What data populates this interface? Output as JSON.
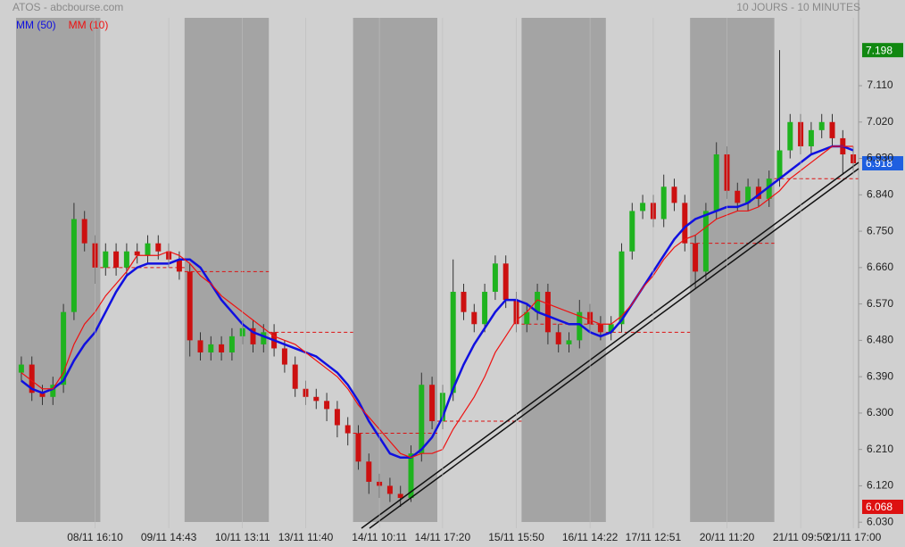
{
  "chart_data": {
    "type": "candlestick",
    "title": "ATOS - abcbourse.com",
    "subtitle": "10 JOURS - 10 MINUTES",
    "categories": [
      null,
      null,
      null,
      null,
      null,
      null,
      null,
      "08/11 16:10",
      null,
      null,
      null,
      null,
      null,
      null,
      "09/11 14:43",
      null,
      null,
      null,
      null,
      null,
      null,
      "10/11 13:11",
      null,
      null,
      null,
      null,
      null,
      "13/11 11:40",
      null,
      null,
      null,
      null,
      null,
      null,
      "14/11 10:11",
      null,
      null,
      null,
      null,
      null,
      "14/11 17:20",
      null,
      null,
      null,
      null,
      null,
      null,
      "15/11 15:50",
      null,
      null,
      null,
      null,
      null,
      null,
      "16/11 14:22",
      null,
      null,
      null,
      null,
      null,
      "17/11 12:51",
      null,
      null,
      null,
      null,
      null,
      null,
      "20/11 11:20",
      null,
      null,
      null,
      null,
      null,
      null,
      "21/11 09:50",
      null,
      null,
      null,
      null,
      "21/11 17:00"
    ],
    "open": [
      6.4,
      6.42,
      6.35,
      6.34,
      6.37,
      6.55,
      6.78,
      6.72,
      6.66,
      6.7,
      6.66,
      6.7,
      6.69,
      6.72,
      6.7,
      6.68,
      6.65,
      6.48,
      6.45,
      6.47,
      6.45,
      6.49,
      6.51,
      6.47,
      6.5,
      6.46,
      6.42,
      6.36,
      6.34,
      6.33,
      6.31,
      6.27,
      6.25,
      6.18,
      6.13,
      6.12,
      6.1,
      6.09,
      6.2,
      6.37,
      6.28,
      6.35,
      6.6,
      6.55,
      6.52,
      6.6,
      6.67,
      6.58,
      6.52,
      6.55,
      6.6,
      6.5,
      6.47,
      6.48,
      6.55,
      6.52,
      6.5,
      6.52,
      6.7,
      6.8,
      6.82,
      6.78,
      6.86,
      6.82,
      6.72,
      6.65,
      6.8,
      6.94,
      6.85,
      6.82,
      6.86,
      6.83,
      6.88,
      6.95,
      7.02,
      6.96,
      7.0,
      7.02,
      6.98,
      6.94
    ],
    "high": [
      6.44,
      6.44,
      6.37,
      6.39,
      6.57,
      6.82,
      6.8,
      6.74,
      6.72,
      6.72,
      6.72,
      6.72,
      6.74,
      6.74,
      6.72,
      6.7,
      6.67,
      6.5,
      6.49,
      6.49,
      6.51,
      6.53,
      6.53,
      6.52,
      6.52,
      6.48,
      6.44,
      6.38,
      6.36,
      6.35,
      6.33,
      6.29,
      6.27,
      6.2,
      6.15,
      6.14,
      6.12,
      6.22,
      6.4,
      6.39,
      6.37,
      6.68,
      6.62,
      6.57,
      6.62,
      6.69,
      6.69,
      6.6,
      6.57,
      6.62,
      6.62,
      6.52,
      6.5,
      6.58,
      6.57,
      6.54,
      6.54,
      6.72,
      6.82,
      6.84,
      6.84,
      6.89,
      6.88,
      6.84,
      6.74,
      6.82,
      6.97,
      6.96,
      6.87,
      6.88,
      6.88,
      6.9,
      7.198,
      7.04,
      7.04,
      7.02,
      7.04,
      7.04,
      7.0,
      6.96
    ],
    "low": [
      6.38,
      6.33,
      6.32,
      6.32,
      6.35,
      6.53,
      6.7,
      6.62,
      6.64,
      6.64,
      6.64,
      6.67,
      6.67,
      6.68,
      6.66,
      6.63,
      6.44,
      6.43,
      6.43,
      6.43,
      6.43,
      6.47,
      6.45,
      6.45,
      6.44,
      6.4,
      6.34,
      6.32,
      6.31,
      6.28,
      6.24,
      6.22,
      6.16,
      6.1,
      6.09,
      6.08,
      6.068,
      6.08,
      6.18,
      6.26,
      6.26,
      6.33,
      6.53,
      6.5,
      6.5,
      6.58,
      6.56,
      6.5,
      6.5,
      6.53,
      6.47,
      6.45,
      6.45,
      6.46,
      6.5,
      6.48,
      6.48,
      6.5,
      6.68,
      6.78,
      6.76,
      6.76,
      6.8,
      6.7,
      6.61,
      6.63,
      6.78,
      6.83,
      6.8,
      6.8,
      6.81,
      6.81,
      6.86,
      6.93,
      6.94,
      6.94,
      6.98,
      6.96,
      6.89,
      6.9
    ],
    "close": [
      6.42,
      6.35,
      6.34,
      6.37,
      6.55,
      6.78,
      6.72,
      6.66,
      6.7,
      6.66,
      6.7,
      6.69,
      6.72,
      6.7,
      6.68,
      6.65,
      6.48,
      6.45,
      6.47,
      6.45,
      6.49,
      6.51,
      6.47,
      6.5,
      6.46,
      6.42,
      6.36,
      6.34,
      6.33,
      6.31,
      6.27,
      6.25,
      6.18,
      6.13,
      6.12,
      6.1,
      6.09,
      6.2,
      6.37,
      6.28,
      6.35,
      6.6,
      6.55,
      6.52,
      6.6,
      6.67,
      6.58,
      6.52,
      6.55,
      6.6,
      6.5,
      6.47,
      6.48,
      6.55,
      6.52,
      6.5,
      6.52,
      6.7,
      6.8,
      6.82,
      6.78,
      6.86,
      6.82,
      6.72,
      6.65,
      6.8,
      6.94,
      6.85,
      6.82,
      6.86,
      6.83,
      6.88,
      6.95,
      7.02,
      6.96,
      7.0,
      7.02,
      6.98,
      6.94,
      6.918
    ],
    "up_color": "#1fb31f",
    "down_color": "#cc1010",
    "series": [
      {
        "name": "MM (50)",
        "color": "#1010e0",
        "values": [
          6.38,
          6.36,
          6.35,
          6.36,
          6.38,
          6.43,
          6.47,
          6.5,
          6.55,
          6.6,
          6.64,
          6.66,
          6.67,
          6.67,
          6.67,
          6.68,
          6.68,
          6.66,
          6.62,
          6.58,
          6.55,
          6.52,
          6.5,
          6.49,
          6.48,
          6.47,
          6.46,
          6.45,
          6.44,
          6.42,
          6.4,
          6.37,
          6.33,
          6.28,
          6.24,
          6.2,
          6.19,
          6.19,
          6.21,
          6.24,
          6.29,
          6.36,
          6.42,
          6.47,
          6.51,
          6.55,
          6.58,
          6.58,
          6.57,
          6.55,
          6.54,
          6.53,
          6.52,
          6.52,
          6.5,
          6.49,
          6.5,
          6.53,
          6.57,
          6.61,
          6.65,
          6.69,
          6.73,
          6.76,
          6.78,
          6.79,
          6.8,
          6.81,
          6.81,
          6.82,
          6.84,
          6.86,
          6.88,
          6.9,
          6.92,
          6.94,
          6.95,
          6.96,
          6.96,
          6.95
        ]
      },
      {
        "name": "MM (10)",
        "color": "#ee1111",
        "values": [
          6.4,
          6.38,
          6.36,
          6.36,
          6.4,
          6.47,
          6.52,
          6.55,
          6.59,
          6.62,
          6.65,
          6.69,
          6.69,
          6.69,
          6.7,
          6.69,
          6.67,
          6.64,
          6.62,
          6.59,
          6.57,
          6.55,
          6.53,
          6.51,
          6.49,
          6.48,
          6.47,
          6.45,
          6.43,
          6.41,
          6.39,
          6.36,
          6.32,
          6.29,
          6.26,
          6.23,
          6.2,
          6.19,
          6.2,
          6.2,
          6.21,
          6.26,
          6.3,
          6.34,
          6.39,
          6.45,
          6.49,
          6.53,
          6.55,
          6.58,
          6.57,
          6.56,
          6.55,
          6.54,
          6.53,
          6.52,
          6.52,
          6.54,
          6.57,
          6.61,
          6.64,
          6.68,
          6.71,
          6.73,
          6.74,
          6.76,
          6.78,
          6.79,
          6.8,
          6.8,
          6.81,
          6.83,
          6.85,
          6.88,
          6.9,
          6.92,
          6.94,
          6.96,
          6.96,
          6.96
        ]
      }
    ],
    "ylim": [
      6.015,
      7.322
    ],
    "yticks": [
      {
        "value": 6.03,
        "label": "6.030"
      },
      {
        "value": 6.12,
        "label": "6.120"
      },
      {
        "value": 6.21,
        "label": "6.210"
      },
      {
        "value": 6.3,
        "label": "6.300"
      },
      {
        "value": 6.39,
        "label": "6.390"
      },
      {
        "value": 6.48,
        "label": "6.480"
      },
      {
        "value": 6.57,
        "label": "6.570"
      },
      {
        "value": 6.66,
        "label": "6.660"
      },
      {
        "value": 6.75,
        "label": "6.750"
      },
      {
        "value": 6.84,
        "label": "6.840"
      },
      {
        "value": 6.93,
        "label": "6.930"
      },
      {
        "value": 7.02,
        "label": "7.020"
      },
      {
        "value": 7.11,
        "label": "7.110"
      }
    ]
  }
}
